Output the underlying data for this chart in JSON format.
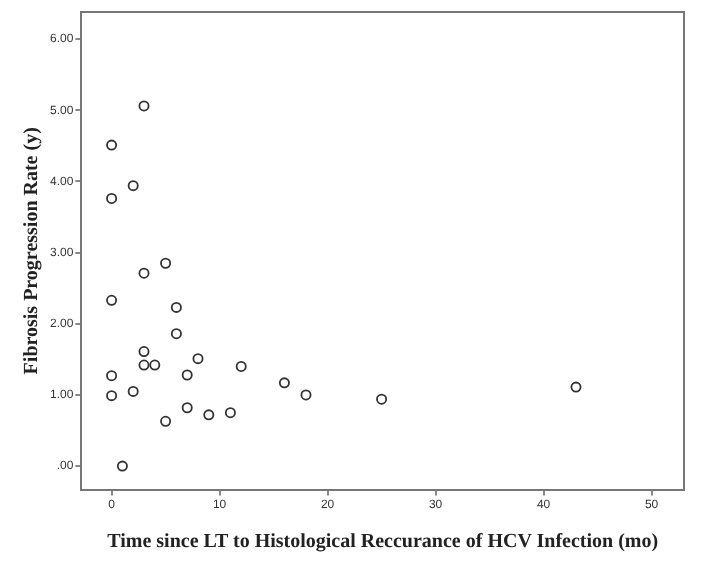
{
  "chart_data": {
    "type": "scatter",
    "xlabel": "Time since LT to Histological Reccurance of HCV Infection (mo)",
    "ylabel": "Fibrosis Progression Rate (y)",
    "x": [
      0,
      3,
      5,
      6,
      6,
      3,
      3,
      4,
      8,
      0,
      7,
      12,
      16,
      18,
      0,
      2,
      7,
      5,
      9,
      11,
      1,
      0,
      0,
      2,
      3,
      25,
      43
    ],
    "values": [
      2.33,
      2.71,
      2.85,
      2.23,
      1.86,
      1.61,
      1.42,
      1.42,
      1.51,
      1.27,
      1.28,
      1.4,
      1.17,
      1.0,
      0.99,
      1.05,
      0.82,
      0.63,
      0.72,
      0.75,
      0.0,
      4.51,
      3.76,
      3.94,
      5.06,
      0.94,
      1.11
    ],
    "color": "#333333",
    "marker": "circle",
    "grid": false,
    "legend": false,
    "xlim": [
      -2.8,
      53
    ],
    "ylim": [
      -0.33,
      6.38
    ],
    "xticks": [
      0,
      10,
      20,
      30,
      40,
      50
    ],
    "yticks": [
      {
        "value": 0,
        "label": ".00"
      },
      {
        "value": 1,
        "label": "1.00"
      },
      {
        "value": 2,
        "label": "2.00"
      },
      {
        "value": 3,
        "label": "3.00"
      },
      {
        "value": 4,
        "label": "4.00"
      },
      {
        "value": 5,
        "label": "5.00"
      },
      {
        "value": 6,
        "label": "6.00"
      }
    ]
  }
}
